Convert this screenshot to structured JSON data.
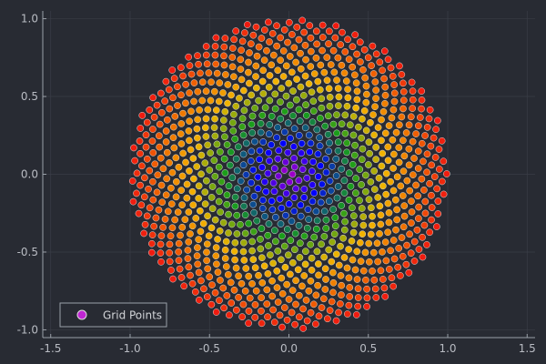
{
  "chart_data": {
    "type": "scatter",
    "title": "",
    "xlabel": "",
    "ylabel": "",
    "xlim": [
      -1.55,
      1.55
    ],
    "ylim": [
      -1.05,
      1.05
    ],
    "x_ticks": [
      -1.5,
      -1.0,
      -0.5,
      0.0,
      0.5,
      1.0,
      1.5
    ],
    "x_tick_labels": [
      "-1.5",
      "-1.0",
      "-0.5",
      "0.0",
      "0.5",
      "1.0",
      "1.5"
    ],
    "y_ticks": [
      -1.0,
      -0.5,
      0.0,
      0.5,
      1.0
    ],
    "y_tick_labels": [
      "-1.0",
      "-0.5",
      "0.0",
      "0.5",
      "1.0"
    ],
    "grid": true,
    "legend": {
      "position": "bottom-left",
      "entries": [
        {
          "label": "Grid Points",
          "color": "#c026d3"
        }
      ]
    },
    "series": [
      {
        "name": "Grid Points",
        "pattern": "sunflower phyllotaxis spiral (golden-angle)",
        "point_count": 1000,
        "radius_range": [
          0.0,
          1.0
        ],
        "color_by_radius": [
          "#b000c0",
          "#0000ff",
          "#1a9e1a",
          "#f2b400",
          "#f07000",
          "#f01a10"
        ]
      }
    ]
  },
  "colors": {
    "background": "#282b33",
    "axis": "#9aa0a8",
    "grid": "#3a3e47",
    "marker_edge": "#dddddd",
    "legend_bg": "#282b33",
    "legend_border": "#9aa0a8"
  }
}
